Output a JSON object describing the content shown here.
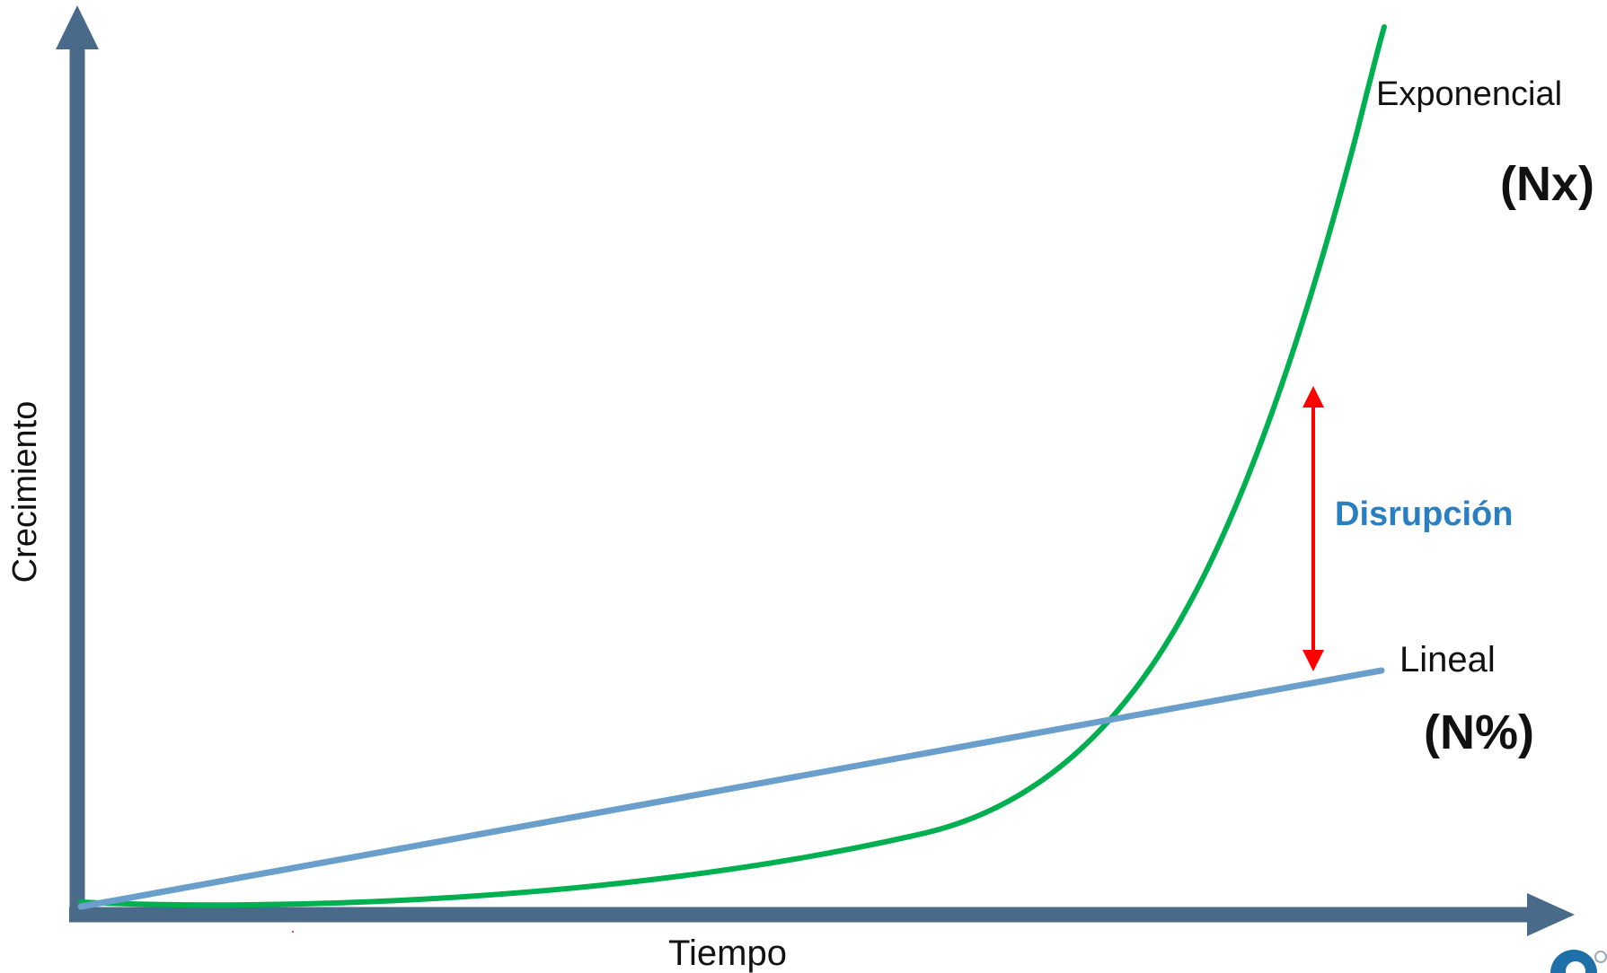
{
  "axes": {
    "x_label": "Tiempo",
    "y_label": "Crecimiento"
  },
  "curves": {
    "exponential": {
      "label": "Exponencial",
      "notation": "(Nx)"
    },
    "linear": {
      "label": "Lineal",
      "notation": "(N%)"
    }
  },
  "gap_label": "Disrupción",
  "colors": {
    "axis": "#4a6a8a",
    "exponential": "#00b050",
    "linear": "#6a9fcb",
    "gap_arrow": "#ff0000",
    "gap_label": "#2a7fc0",
    "logo": "#1f6fa8"
  },
  "logo_icon": "partial-circular-logo-icon"
}
